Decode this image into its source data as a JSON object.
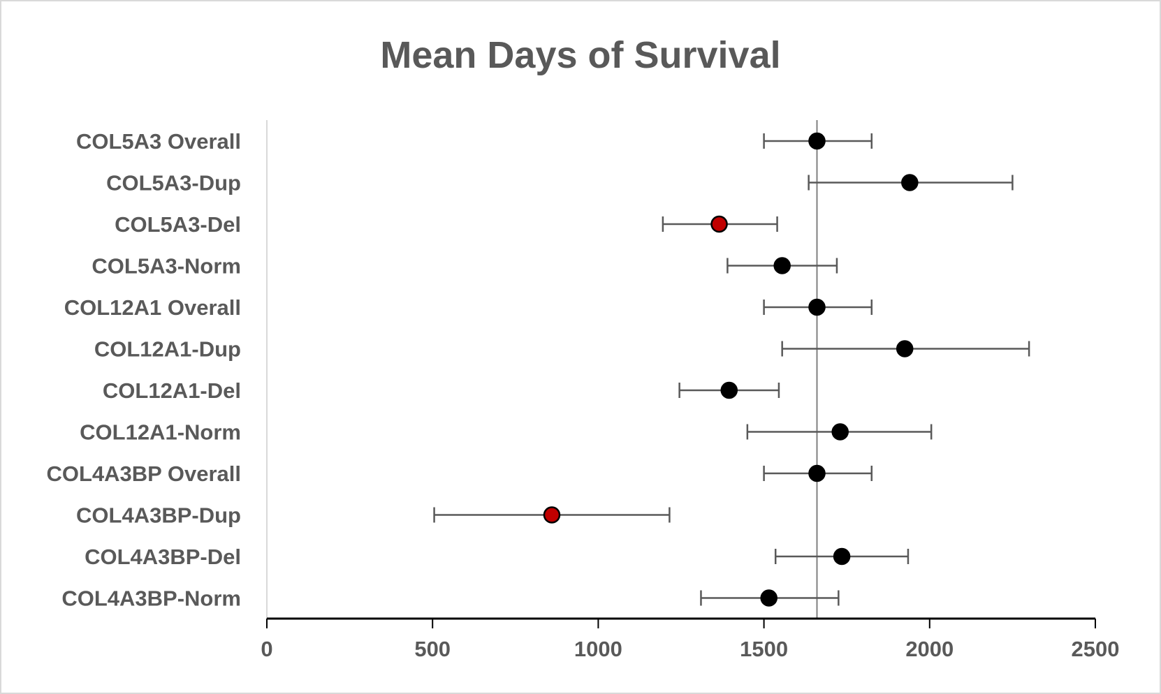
{
  "chart_data": {
    "type": "scatter",
    "title": "Mean Days of Survival",
    "xlabel": "",
    "ylabel": "",
    "xlim": [
      0,
      2500
    ],
    "xticks": [
      0,
      500,
      1000,
      1500,
      2000,
      2500
    ],
    "x_tick_labels": [
      "0",
      "500",
      "1000",
      "1500",
      "2000",
      "2500"
    ],
    "reference_line_x": 1660,
    "grid": false,
    "legend": "none",
    "series_colors": {
      "normal": "#000000",
      "highlighted": "#c00000"
    },
    "categories": [
      "COL5A3 Overall",
      "COL5A3-Dup",
      "COL5A3-Del",
      "COL5A3-Norm",
      "COL12A1 Overall",
      "COL12A1-Dup",
      "COL12A1-Del",
      "COL12A1-Norm",
      "COL4A3BP Overall",
      "COL4A3BP-Dup",
      "COL4A3BP-Del",
      "COL4A3BP-Norm"
    ],
    "points": [
      {
        "category": "COL5A3 Overall",
        "mean": 1660,
        "low": 1500,
        "high": 1825,
        "highlighted": false
      },
      {
        "category": "COL5A3-Dup",
        "mean": 1940,
        "low": 1635,
        "high": 2250,
        "highlighted": false
      },
      {
        "category": "COL5A3-Del",
        "mean": 1365,
        "low": 1195,
        "high": 1540,
        "highlighted": true
      },
      {
        "category": "COL5A3-Norm",
        "mean": 1555,
        "low": 1390,
        "high": 1720,
        "highlighted": false
      },
      {
        "category": "COL12A1 Overall",
        "mean": 1660,
        "low": 1500,
        "high": 1825,
        "highlighted": false
      },
      {
        "category": "COL12A1-Dup",
        "mean": 1925,
        "low": 1555,
        "high": 2300,
        "highlighted": false
      },
      {
        "category": "COL12A1-Del",
        "mean": 1395,
        "low": 1245,
        "high": 1545,
        "highlighted": false
      },
      {
        "category": "COL12A1-Norm",
        "mean": 1730,
        "low": 1450,
        "high": 2005,
        "highlighted": false
      },
      {
        "category": "COL4A3BP Overall",
        "mean": 1660,
        "low": 1500,
        "high": 1825,
        "highlighted": false
      },
      {
        "category": "COL4A3BP-Dup",
        "mean": 860,
        "low": 505,
        "high": 1215,
        "highlighted": true
      },
      {
        "category": "COL4A3BP-Del",
        "mean": 1735,
        "low": 1535,
        "high": 1935,
        "highlighted": false
      },
      {
        "category": "COL4A3BP-Norm",
        "mean": 1515,
        "low": 1310,
        "high": 1725,
        "highlighted": false
      }
    ]
  }
}
